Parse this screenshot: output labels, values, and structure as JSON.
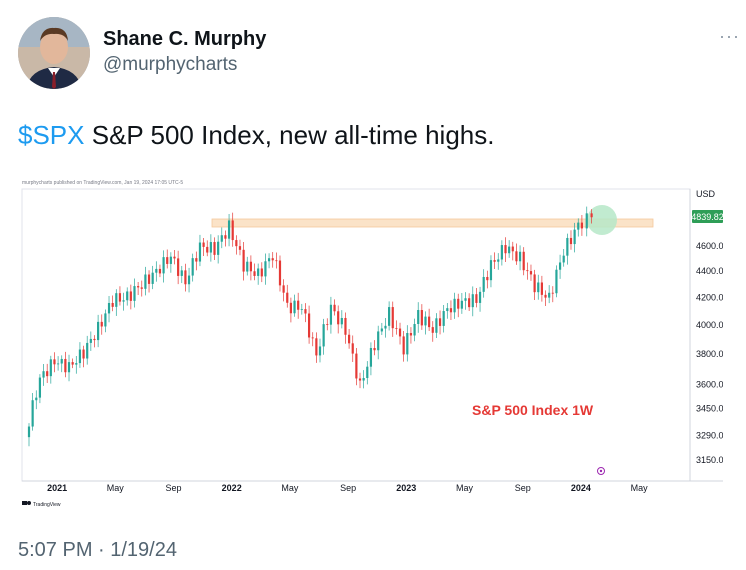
{
  "author": {
    "name": "Shane C. Murphy",
    "handle": "@murphycharts",
    "avatar_icon": "user-avatar-photo"
  },
  "more_label": "···",
  "tweet": {
    "cashtag": "$SPX",
    "text": " S&P 500 Index, new all-time highs."
  },
  "chart": {
    "header_text": "murphycharts published on TradingView.com, Jan 19, 2024 17:05 UTC-5",
    "currency": "USD",
    "last_price": "4839.82",
    "watermark": "S&P 500 Index 1W",
    "footer_brand": "TradingView",
    "colors": {
      "up": "#26a69a",
      "down": "#e53935",
      "resistance_band": "#fbe3c8",
      "highlight_circle": "#b6e8c8",
      "watermark": "#e53935",
      "price_badge": "#2e9e57"
    },
    "y_ticks": [
      "4600.00",
      "4400.00",
      "4200.00",
      "4000.00",
      "3800.00",
      "3600.00",
      "3450.00",
      "3290.00",
      "3150.00"
    ],
    "x_ticks": [
      "2021",
      "May",
      "Sep",
      "2022",
      "May",
      "Sep",
      "2023",
      "May",
      "Sep",
      "2024",
      "May"
    ]
  },
  "chart_data": {
    "type": "candlestick",
    "title": "S&P 500 Index 1W",
    "ylabel": "USD",
    "y_scale": "log",
    "ylim": [
      3100,
      4950
    ],
    "x": [
      "2020-11",
      "2020-12",
      "2021-01",
      "2021-02",
      "2021-03",
      "2021-04",
      "2021-05",
      "2021-06",
      "2021-07",
      "2021-08",
      "2021-09",
      "2021-10",
      "2021-11",
      "2021-12",
      "2022-01",
      "2022-02",
      "2022-03",
      "2022-04",
      "2022-05",
      "2022-06",
      "2022-07",
      "2022-08",
      "2022-09",
      "2022-10",
      "2022-11",
      "2022-12",
      "2023-01",
      "2023-02",
      "2023-03",
      "2023-04",
      "2023-05",
      "2023-06",
      "2023-07",
      "2023-08",
      "2023-09",
      "2023-10",
      "2023-11",
      "2023-12",
      "2024-01"
    ],
    "close": [
      3640,
      3750,
      3715,
      3810,
      3975,
      4180,
      4200,
      4300,
      4395,
      4520,
      4310,
      4600,
      4570,
      4760,
      4450,
      4370,
      4530,
      4130,
      4130,
      3790,
      4130,
      3960,
      3590,
      3870,
      4080,
      3840,
      4070,
      3970,
      4110,
      4170,
      4180,
      4450,
      4590,
      4500,
      4290,
      4190,
      4560,
      4770,
      4839.82
    ],
    "resistance_band": [
      4780,
      4818
    ],
    "last_value": 4839.82,
    "annotations": [
      "S&P 500 Index 1W"
    ]
  },
  "timestamp": "5:07 PM · 1/19/24"
}
